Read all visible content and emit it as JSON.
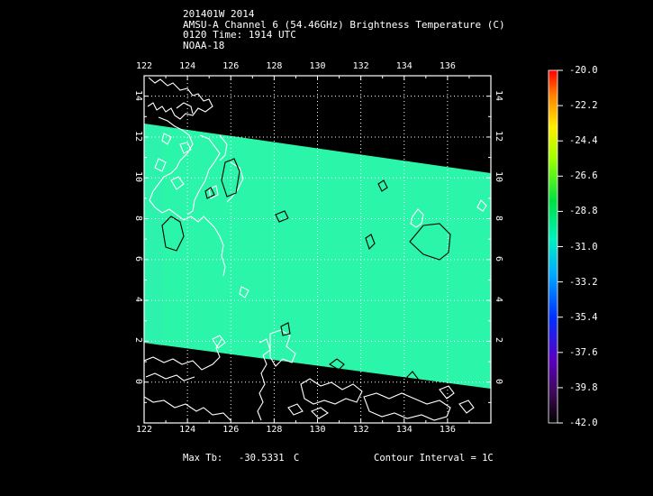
{
  "header": {
    "line1": "201401W 2014",
    "line2": "AMSU-A Channel 6 (54.46GHz) Brightness Temperature (C)",
    "line3": "0120 Time: 1914 UTC",
    "line4": "NOAA-18"
  },
  "map": {
    "lon_labels": [
      "122",
      "124",
      "126",
      "128",
      "130",
      "132",
      "134",
      "136"
    ],
    "lat_labels": [
      "0",
      "2",
      "4",
      "6",
      "8",
      "10",
      "12",
      "14"
    ],
    "lon_range": [
      122,
      138
    ],
    "lat_range": [
      -2,
      15
    ],
    "swath_color": "#2af5a8",
    "coast_color": "#ffffff",
    "contour_color": "#000000",
    "grid_style": "dotted white"
  },
  "colorbar": {
    "labels": [
      "-20.0",
      "-22.2",
      "-24.4",
      "-26.6",
      "-28.8",
      "-31.0",
      "-33.2",
      "-35.4",
      "-37.6",
      "-39.8",
      "-42.0"
    ],
    "min": -42.0,
    "max": -20.0
  },
  "footer": {
    "max_tb_label": "Max Tb:",
    "max_tb_value": "-30.5331",
    "max_tb_unit": "C",
    "contour_interval": "Contour Interval = 1C"
  }
}
